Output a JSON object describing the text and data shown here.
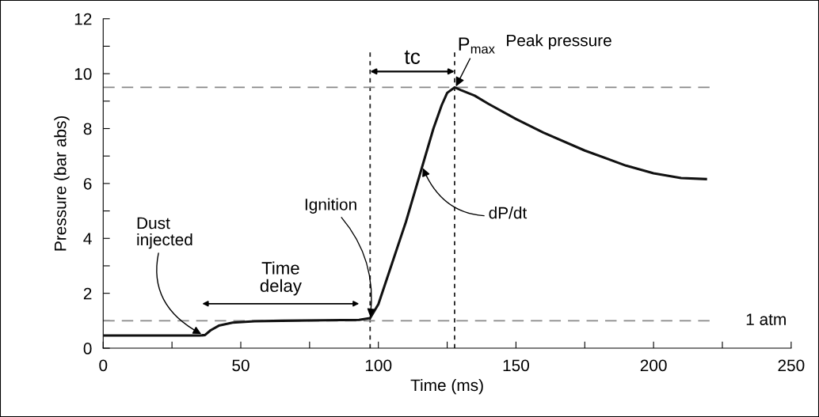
{
  "chart_data": {
    "type": "line",
    "xlabel": "Time (ms)",
    "ylabel": "Pressure (bar abs)",
    "x": [
      0,
      10,
      20,
      30,
      35,
      37,
      39,
      42,
      47,
      55,
      65,
      80,
      93,
      97,
      100,
      105,
      110,
      115,
      120,
      123,
      125,
      127.7,
      130,
      135,
      140,
      150,
      160,
      175,
      190,
      200,
      210,
      219
    ],
    "series": [
      {
        "color": "#111111",
        "values": [
          0.46,
          0.46,
          0.46,
          0.46,
          0.46,
          0.48,
          0.65,
          0.82,
          0.93,
          0.98,
          1.0,
          1.02,
          1.03,
          1.1,
          1.6,
          3.1,
          4.6,
          6.3,
          8.0,
          8.85,
          9.3,
          9.5,
          9.4,
          9.2,
          8.9,
          8.35,
          7.85,
          7.2,
          6.65,
          6.37,
          6.2,
          6.16
        ]
      }
    ],
    "xlim": [
      0,
      250
    ],
    "ylim": [
      0,
      12
    ],
    "xticks": [
      0,
      {
        "value": 25,
        "label": null
      },
      50,
      {
        "value": 75,
        "label": null
      },
      100,
      {
        "value": 125,
        "label": null
      },
      150,
      {
        "value": 175,
        "label": null
      },
      200,
      {
        "value": 225,
        "label": null
      },
      250
    ],
    "yticks": [
      0,
      {
        "value": 1,
        "label": null
      },
      2,
      {
        "value": 3,
        "label": null
      },
      4,
      {
        "value": 5,
        "label": null
      },
      6,
      {
        "value": 7,
        "label": null
      },
      8,
      {
        "value": 9,
        "label": null
      },
      10,
      {
        "value": 11,
        "label": null
      },
      12
    ],
    "ref_lines": [
      {
        "axis": "x",
        "value": 97,
        "line_style": "dotted",
        "color": "#222222"
      },
      {
        "axis": "x",
        "value": 127.7,
        "line_style": "dotted",
        "color": "#222222"
      },
      {
        "axis": "y",
        "value": 9.5,
        "line_style": "dashed",
        "color": "#888888"
      },
      {
        "axis": "y",
        "value": 1,
        "line_style": "dashed",
        "color": "#888888",
        "label": "1 atm"
      }
    ],
    "annotations": [
      {
        "text": "Dust\ninjected",
        "x": 36,
        "y": 0.5
      },
      "Time\ndelay",
      {
        "text": "Ignition",
        "x": 97,
        "y": 1.1
      },
      "tc",
      {
        "text": "P$_{max}$",
        "x": 128,
        "y": 9.5
      },
      "Peak pressure",
      {
        "text": "dP/dt",
        "x": 116,
        "y": 6.6
      }
    ],
    "grid": false,
    "legend": false,
    "marker": "none",
    "line_style": "solid"
  }
}
